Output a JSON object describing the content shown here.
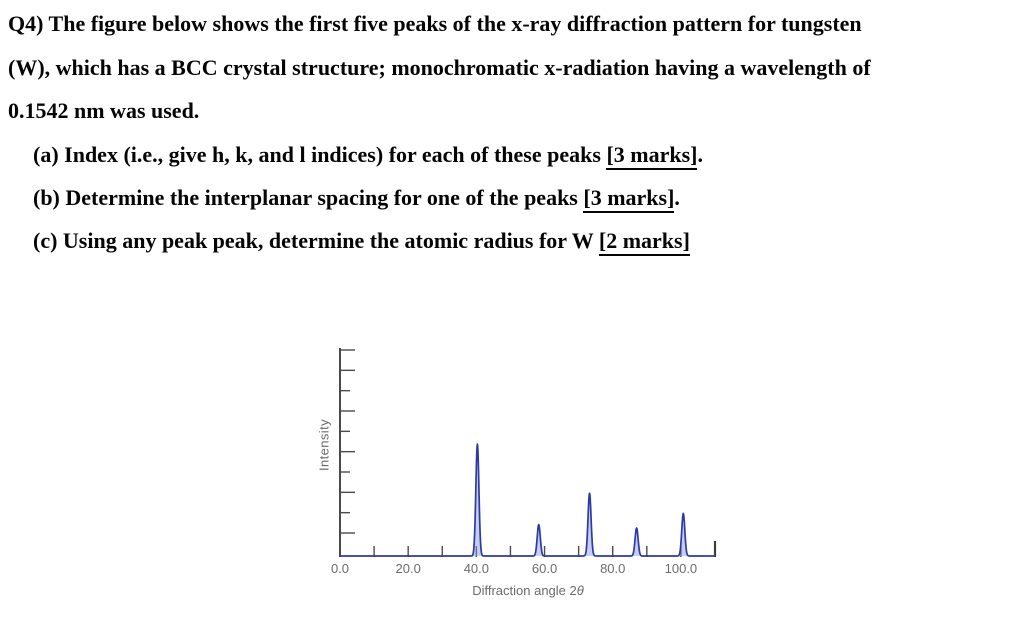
{
  "document": {
    "paragraph_lines": [
      "Q4) The figure below shows the first five peaks of the x-ray diffraction pattern for tungsten",
      "(W), which has a BCC crystal structure; monochromatic x-radiation having a wavelength of",
      "0.1542 nm was used."
    ],
    "items": [
      {
        "prefix": "(a) Index (i.e., give h, k, and l indices) for each of these peaks ",
        "marks": "[3 marks]",
        "suffix": "."
      },
      {
        "prefix": "(b) Determine the interplanar spacing for one of the peaks ",
        "marks": "[3 marks]",
        "suffix": "."
      },
      {
        "prefix": "(c) Using any peak peak, determine the atomic radius for W ",
        "marks": "[2 marks]",
        "suffix": ""
      }
    ]
  },
  "chart_data": {
    "type": "line",
    "title": "",
    "xlabel": "Diffraction angle 2θ",
    "xlabel_prefix": "Diffraction angle 2",
    "xlabel_symbol": "θ",
    "ylabel": "Intensity",
    "xlim": [
      0,
      110
    ],
    "ylim": [
      0,
      185
    ],
    "x_tick_values": [
      0,
      20,
      40,
      60,
      80,
      100
    ],
    "x_tick_labels": [
      "0.0",
      "20.0",
      "40.0",
      "60.0",
      "80.0",
      "100.0"
    ],
    "x_minor_tick_step": 10,
    "y_tick_count": 10,
    "grid": false,
    "legend": false,
    "peaks": [
      {
        "two_theta": 40.3,
        "relative_intensity": 100
      },
      {
        "two_theta": 58.3,
        "relative_intensity": 28
      },
      {
        "two_theta": 73.2,
        "relative_intensity": 56
      },
      {
        "two_theta": 87.0,
        "relative_intensity": 25
      },
      {
        "two_theta": 100.7,
        "relative_intensity": 38
      }
    ],
    "peak_sigma_deg": 0.45,
    "colors": {
      "line": "#2b3aa6",
      "peak_fill": "#8593d6",
      "axis": "#4a4a4a",
      "tick_labels": "#6b6b6b"
    }
  }
}
